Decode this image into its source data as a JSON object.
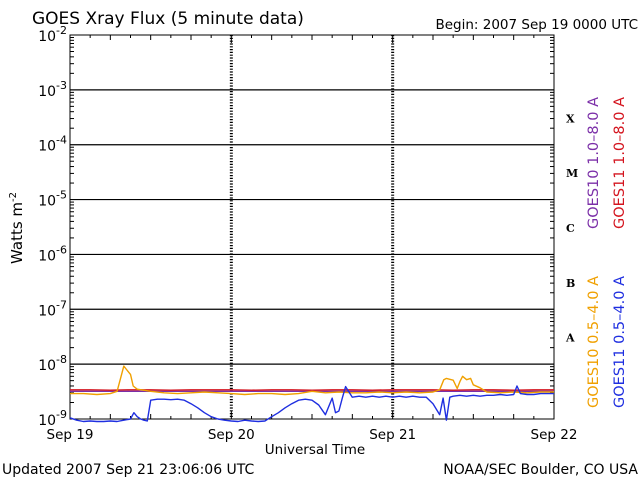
{
  "chart_data": {
    "type": "line",
    "title": "GOES Xray Flux (5 minute data)",
    "begin_label": "Begin:  2007 Sep 19 0000 UTC",
    "xlabel": "Universal Time",
    "ylabel": "Watts m",
    "ylabel_exp": "-2",
    "y_scale": "log",
    "ylim": [
      1e-09,
      0.01
    ],
    "y_ticks": [
      {
        "base": "10",
        "exp": "-2",
        "value": 0.01
      },
      {
        "base": "10",
        "exp": "-3",
        "value": 0.001
      },
      {
        "base": "10",
        "exp": "-4",
        "value": 0.0001
      },
      {
        "base": "10",
        "exp": "-5",
        "value": 1e-05
      },
      {
        "base": "10",
        "exp": "-6",
        "value": 1e-06
      },
      {
        "base": "10",
        "exp": "-7",
        "value": 1e-07
      },
      {
        "base": "10",
        "exp": "-8",
        "value": 1e-08
      },
      {
        "base": "10",
        "exp": "-9",
        "value": 1e-09
      }
    ],
    "x_range_hours": [
      0,
      72
    ],
    "x_ticks": [
      {
        "label": "Sep 19",
        "hour": 0
      },
      {
        "label": "Sep 20",
        "hour": 24
      },
      {
        "label": "Sep 21",
        "hour": 48
      },
      {
        "label": "Sep 22",
        "hour": 72
      }
    ],
    "flare_classes": [
      {
        "label": "X",
        "lo": 0.0001,
        "hi": 0.001
      },
      {
        "label": "M",
        "lo": 1e-05,
        "hi": 0.0001
      },
      {
        "label": "C",
        "lo": 1e-06,
        "hi": 1e-05
      },
      {
        "label": "B",
        "lo": 1e-07,
        "hi": 1e-06
      },
      {
        "label": "A",
        "lo": 1e-08,
        "hi": 1e-07
      }
    ],
    "legend_upper": [
      {
        "label": "GOES10 1.0–8.0 A",
        "color": "#7b2fa8"
      },
      {
        "label": "GOES11 1.0–8.0 A",
        "color": "#d4141e"
      }
    ],
    "legend_lower": [
      {
        "label": "GOES10 0.5–4.0 A",
        "color": "#f0a000"
      },
      {
        "label": "GOES11 0.5–4.0 A",
        "color": "#1f2fe0"
      }
    ],
    "series": [
      {
        "name": "GOES10 1.0–8.0 A",
        "color": "#7b2fa8",
        "x": [
          0,
          6,
          12,
          18,
          24,
          30,
          36,
          42,
          48,
          54,
          60,
          66,
          72
        ],
        "y": [
          3.2e-09,
          3.2e-09,
          3.2e-09,
          3.2e-09,
          3.2e-09,
          3.2e-09,
          3.2e-09,
          3.2e-09,
          3.2e-09,
          3.2e-09,
          3.2e-09,
          3.2e-09,
          3.2e-09
        ]
      },
      {
        "name": "GOES11 1.0–8.0 A",
        "color": "#d4141e",
        "x": [
          0,
          3,
          6,
          9,
          12,
          15,
          18,
          21,
          24,
          27,
          30,
          33,
          36,
          39,
          42,
          45,
          48,
          51,
          54,
          57,
          60,
          63,
          66,
          69,
          72
        ],
        "y": [
          3.4e-09,
          3.4e-09,
          3.35e-09,
          3.4e-09,
          3.4e-09,
          3.35e-09,
          3.4e-09,
          3.4e-09,
          3.4e-09,
          3.35e-09,
          3.4e-09,
          3.4e-09,
          3.35e-09,
          3.4e-09,
          3.4e-09,
          3.35e-09,
          3.4e-09,
          3.4e-09,
          3.4e-09,
          3.35e-09,
          3.4e-09,
          3.4e-09,
          3.35e-09,
          3.4e-09,
          3.4e-09
        ]
      },
      {
        "name": "GOES10 0.5–4.0 A",
        "color": "#f0a000",
        "x": [
          0,
          2,
          4,
          6,
          7,
          7.6,
          8,
          8.4,
          9,
          9.4,
          10,
          12,
          14,
          16,
          18,
          20,
          22,
          24,
          26,
          28,
          30,
          32,
          34,
          36,
          38,
          40,
          42,
          44,
          46,
          48,
          50,
          52,
          54,
          55,
          55.6,
          56,
          57,
          57.6,
          58,
          58.4,
          59,
          59.6,
          60,
          61,
          62,
          64,
          66,
          68,
          70,
          72
        ],
        "y": [
          2.9e-09,
          2.9e-09,
          2.8e-09,
          2.9e-09,
          3.2e-09,
          6e-09,
          9.2e-09,
          8e-09,
          6.5e-09,
          4e-09,
          3.5e-09,
          3.2e-09,
          3e-09,
          2.9e-09,
          3e-09,
          3.1e-09,
          3e-09,
          2.9e-09,
          2.8e-09,
          2.9e-09,
          2.9e-09,
          2.8e-09,
          2.9e-09,
          3.2e-09,
          3e-09,
          3.1e-09,
          3e-09,
          3e-09,
          3.1e-09,
          3e-09,
          3.1e-09,
          3e-09,
          3.1e-09,
          3.4e-09,
          5.2e-09,
          5.5e-09,
          5.1e-09,
          3.6e-09,
          4.8e-09,
          6e-09,
          5.2e-09,
          5.5e-09,
          4.2e-09,
          3.7e-09,
          3.1e-09,
          3e-09,
          3.1e-09,
          3e-09,
          3.1e-09,
          3.1e-09
        ]
      },
      {
        "name": "GOES11 0.5–4.0 A",
        "color": "#1f2fe0",
        "x": [
          0,
          1,
          2,
          3,
          4,
          5,
          6,
          7,
          8,
          9,
          9.5,
          10,
          10.5,
          11,
          11.5,
          12,
          13,
          14,
          15,
          16,
          17,
          18,
          19,
          20,
          21,
          22,
          23,
          24,
          25,
          26,
          27,
          28,
          29,
          30,
          31,
          32,
          33,
          34,
          35,
          36,
          37,
          38,
          38.5,
          39,
          39.5,
          40,
          40.5,
          41,
          42,
          43,
          44,
          45,
          46,
          47,
          48,
          49,
          50,
          51,
          52,
          53,
          54,
          55,
          55.5,
          56,
          56.5,
          57,
          58,
          59,
          60,
          61,
          62,
          63,
          64,
          65,
          66,
          66.5,
          67,
          68,
          69,
          70,
          71,
          72
        ],
        "y": [
          1.05e-09,
          9.5e-10,
          9e-10,
          9.2e-10,
          9e-10,
          9e-10,
          9.2e-10,
          9e-10,
          9.5e-10,
          1e-09,
          1.3e-09,
          1.1e-09,
          1e-09,
          9.5e-10,
          9.2e-10,
          2.2e-09,
          2.3e-09,
          2.3e-09,
          2.25e-09,
          2.3e-09,
          2.2e-09,
          1.9e-09,
          1.6e-09,
          1.3e-09,
          1.1e-09,
          1e-09,
          9.5e-10,
          9.2e-10,
          9e-10,
          9.5e-10,
          9.2e-10,
          9e-10,
          9.2e-10,
          1.1e-09,
          1.3e-09,
          1.6e-09,
          1.9e-09,
          2.2e-09,
          2.3e-09,
          2.2e-09,
          1.8e-09,
          1.2e-09,
          1.7e-09,
          2.4e-09,
          1.3e-09,
          1.4e-09,
          2.4e-09,
          3.9e-09,
          2.5e-09,
          2.6e-09,
          2.5e-09,
          2.6e-09,
          2.5e-09,
          2.6e-09,
          2.5e-09,
          2.6e-09,
          2.5e-09,
          2.6e-09,
          2.5e-09,
          2.5e-09,
          1.9e-09,
          1.2e-09,
          2.4e-09,
          9.5e-10,
          2.5e-09,
          2.6e-09,
          2.7e-09,
          2.6e-09,
          2.7e-09,
          2.6e-09,
          2.7e-09,
          2.7e-09,
          2.8e-09,
          2.7e-09,
          2.8e-09,
          4e-09,
          2.9e-09,
          2.8e-09,
          2.8e-09,
          2.9e-09,
          2.9e-09,
          2.9e-09
        ]
      }
    ]
  },
  "footer": {
    "updated": "Updated 2007 Sep 21 23:06:06 UTC",
    "credit": "NOAA/SEC Boulder, CO USA"
  }
}
